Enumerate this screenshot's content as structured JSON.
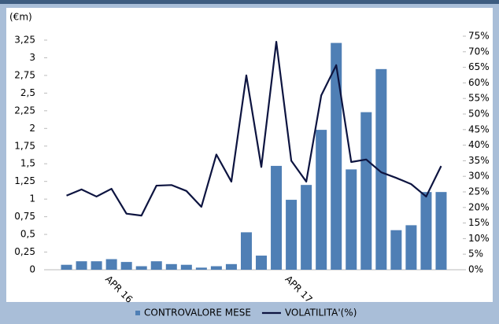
{
  "chart_data": {
    "type": "bar_line",
    "y_label": "(€m)",
    "categories": [
      null,
      null,
      null,
      "APR 16",
      null,
      null,
      null,
      null,
      null,
      null,
      null,
      null,
      null,
      null,
      null,
      "APR 17",
      null,
      null,
      null,
      null,
      null,
      null,
      null,
      null,
      null,
      null
    ],
    "series": [
      {
        "name": "CONTROVALORE MESE",
        "color": "#4f7fb5",
        "type": "bar",
        "values": [
          0.07,
          0.12,
          0.12,
          0.15,
          0.11,
          0.05,
          0.12,
          0.08,
          0.07,
          0.03,
          0.05,
          0.08,
          0.53,
          0.2,
          1.47,
          0.99,
          1.2,
          1.98,
          3.21,
          1.42,
          2.23,
          2.84,
          0.56,
          0.63,
          1.1,
          1.1
        ]
      },
      {
        "name": "VOLATILITA'(%)",
        "color": "#0d1440",
        "type": "line",
        "axis": "y2",
        "values": [
          23.8,
          25.8,
          23.5,
          26,
          18,
          17.4,
          27,
          27.2,
          25.3,
          20.2,
          37,
          28.3,
          62.4,
          33,
          73.2,
          35,
          28.3,
          56,
          65.7,
          34.6,
          35.4,
          31.3,
          29.5,
          27.5,
          23.5,
          33.3
        ]
      }
    ],
    "ylim": [
      0,
      3.25
    ],
    "yticks": [
      0,
      {
        "value": 0.25,
        "label": "0,25"
      },
      {
        "value": 0.5,
        "label": "0,5"
      },
      {
        "value": 0.75,
        "label": "0,75"
      },
      1,
      {
        "value": 1.25,
        "label": "1,25"
      },
      {
        "value": 1.5,
        "label": "1,5"
      },
      {
        "value": 1.75,
        "label": "1,75"
      },
      2,
      {
        "value": 2.25,
        "label": "2,25"
      },
      {
        "value": 2.5,
        "label": "2,5"
      },
      {
        "value": 2.75,
        "label": "2,75"
      },
      3,
      {
        "value": 3.25,
        "label": "3,25"
      }
    ],
    "y2lim": [
      0,
      75
    ],
    "y2ticks": [
      {
        "value": 0,
        "label": "0%"
      },
      {
        "value": 5,
        "label": "5%"
      },
      {
        "value": 10,
        "label": "10%"
      },
      {
        "value": 15,
        "label": "15%"
      },
      {
        "value": 20,
        "label": "20%"
      },
      {
        "value": 25,
        "label": "25%"
      },
      {
        "value": 30,
        "label": "30%"
      },
      {
        "value": 35,
        "label": "35%"
      },
      {
        "value": 40,
        "label": "40%"
      },
      {
        "value": 45,
        "label": "45%"
      },
      {
        "value": 50,
        "label": "50%"
      },
      {
        "value": 55,
        "label": "55%"
      },
      {
        "value": 60,
        "label": "60%"
      },
      {
        "value": 65,
        "label": "65%"
      },
      {
        "value": 70,
        "label": "70%"
      },
      {
        "value": 75,
        "label": "75%"
      }
    ],
    "legend": "bottom",
    "grid": false
  }
}
